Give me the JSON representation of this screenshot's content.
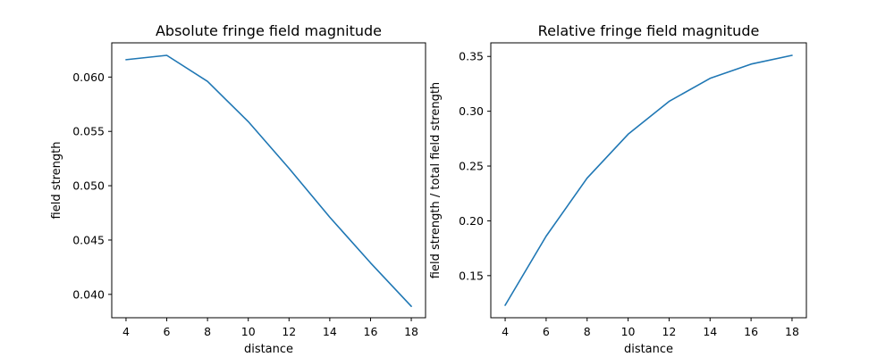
{
  "chart_data": [
    {
      "type": "line",
      "title": "Absolute fringe field magnitude",
      "xlabel": "distance",
      "ylabel": "field strength",
      "x": [
        4,
        6,
        8,
        10,
        12,
        14,
        16,
        18
      ],
      "series": [
        {
          "values": [
            0.0616,
            0.062,
            0.0596,
            0.0559,
            0.0516,
            0.0471,
            0.0429,
            0.0389
          ]
        }
      ],
      "xticks": [
        "4",
        "6",
        "8",
        "10",
        "12",
        "14",
        "16",
        "18"
      ],
      "xtick_values": [
        4,
        6,
        8,
        10,
        12,
        14,
        16,
        18
      ],
      "yticks": [
        "0.040",
        "0.045",
        "0.050",
        "0.055",
        "0.060"
      ],
      "ytick_values": [
        0.04,
        0.045,
        0.05,
        0.055,
        0.06
      ],
      "xlim": [
        3.3,
        18.7
      ],
      "ylim": [
        0.03785,
        0.06315
      ],
      "grid": false,
      "color": "#1f77b4"
    },
    {
      "type": "line",
      "title": "Relative fringe field magnitude",
      "xlabel": "distance",
      "ylabel": "field strength / total field strength",
      "x": [
        4,
        6,
        8,
        10,
        12,
        14,
        16,
        18
      ],
      "series": [
        {
          "values": [
            0.123,
            0.186,
            0.239,
            0.279,
            0.309,
            0.33,
            0.343,
            0.351
          ]
        }
      ],
      "xticks": [
        "4",
        "6",
        "8",
        "10",
        "12",
        "14",
        "16",
        "18"
      ],
      "xtick_values": [
        4,
        6,
        8,
        10,
        12,
        14,
        16,
        18
      ],
      "yticks": [
        "0.15",
        "0.20",
        "0.25",
        "0.30",
        "0.35"
      ],
      "ytick_values": [
        0.15,
        0.2,
        0.25,
        0.3,
        0.35
      ],
      "xlim": [
        3.3,
        18.7
      ],
      "ylim": [
        0.1116,
        0.3624
      ],
      "grid": false,
      "color": "#1f77b4"
    }
  ]
}
